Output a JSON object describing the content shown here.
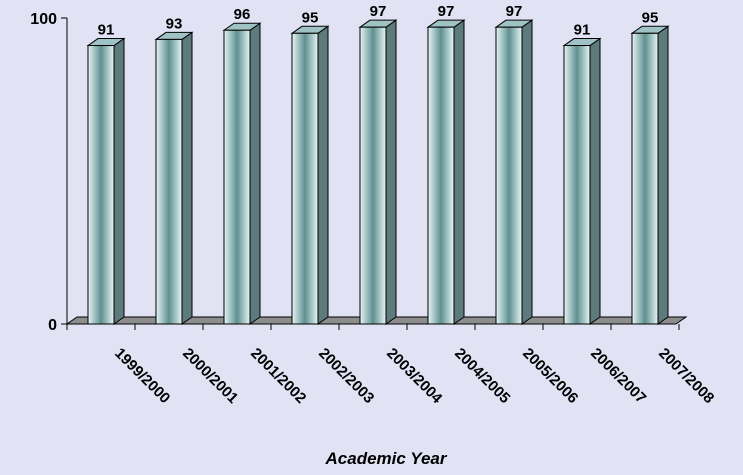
{
  "chart_data": {
    "type": "bar",
    "categories": [
      "1999/2000",
      "2000/2001",
      "2001/2002",
      "2002/2003",
      "2003/2004",
      "2004/2005",
      "2005/2006",
      "2006/2007",
      "2007/2008"
    ],
    "values": [
      91,
      93,
      96,
      95,
      97,
      97,
      97,
      91,
      95
    ],
    "title": "",
    "xlabel": "Academic Year",
    "ylabel": "",
    "ylim": [
      0,
      100
    ],
    "yticks": [
      0,
      100
    ],
    "grid": false,
    "legend": "none",
    "style": "3d-column",
    "colors": {
      "bar_front_light": "#e6f6f6",
      "bar_front_dark": "#5f8f90",
      "bar_side": "#5d7b7c",
      "bar_top": "#9fc3c4",
      "floor": "#8d8d8d",
      "background": "#e2e2f5"
    }
  }
}
